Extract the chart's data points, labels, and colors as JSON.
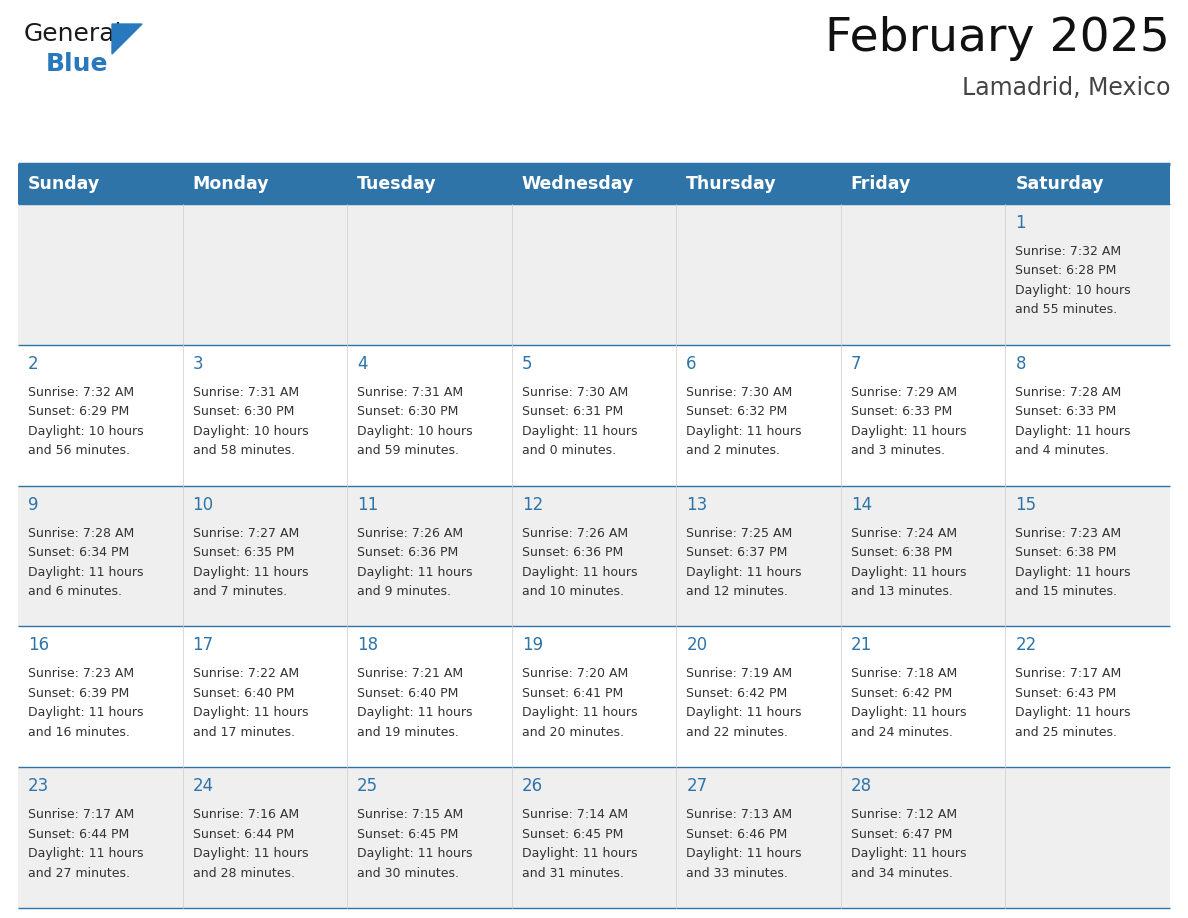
{
  "title": "February 2025",
  "subtitle": "Lamadrid, Mexico",
  "header_bg": "#2E74A8",
  "header_text": "#FFFFFF",
  "header_days": [
    "Sunday",
    "Monday",
    "Tuesday",
    "Wednesday",
    "Thursday",
    "Friday",
    "Saturday"
  ],
  "row_bg_odd": "#EFEFEF",
  "row_bg_even": "#FFFFFF",
  "cell_text_color": "#333333",
  "day_number_color": "#2E74A8",
  "logo_general_color": "#1a1a1a",
  "logo_blue_color": "#2878BE",
  "divider_color": "#2E74A8",
  "calendar_data": [
    [
      null,
      null,
      null,
      null,
      null,
      null,
      {
        "day": 1,
        "sunrise": "7:32 AM",
        "sunset": "6:28 PM",
        "daylight_line1": "Daylight: 10 hours",
        "daylight_line2": "and 55 minutes."
      }
    ],
    [
      {
        "day": 2,
        "sunrise": "7:32 AM",
        "sunset": "6:29 PM",
        "daylight_line1": "Daylight: 10 hours",
        "daylight_line2": "and 56 minutes."
      },
      {
        "day": 3,
        "sunrise": "7:31 AM",
        "sunset": "6:30 PM",
        "daylight_line1": "Daylight: 10 hours",
        "daylight_line2": "and 58 minutes."
      },
      {
        "day": 4,
        "sunrise": "7:31 AM",
        "sunset": "6:30 PM",
        "daylight_line1": "Daylight: 10 hours",
        "daylight_line2": "and 59 minutes."
      },
      {
        "day": 5,
        "sunrise": "7:30 AM",
        "sunset": "6:31 PM",
        "daylight_line1": "Daylight: 11 hours",
        "daylight_line2": "and 0 minutes."
      },
      {
        "day": 6,
        "sunrise": "7:30 AM",
        "sunset": "6:32 PM",
        "daylight_line1": "Daylight: 11 hours",
        "daylight_line2": "and 2 minutes."
      },
      {
        "day": 7,
        "sunrise": "7:29 AM",
        "sunset": "6:33 PM",
        "daylight_line1": "Daylight: 11 hours",
        "daylight_line2": "and 3 minutes."
      },
      {
        "day": 8,
        "sunrise": "7:28 AM",
        "sunset": "6:33 PM",
        "daylight_line1": "Daylight: 11 hours",
        "daylight_line2": "and 4 minutes."
      }
    ],
    [
      {
        "day": 9,
        "sunrise": "7:28 AM",
        "sunset": "6:34 PM",
        "daylight_line1": "Daylight: 11 hours",
        "daylight_line2": "and 6 minutes."
      },
      {
        "day": 10,
        "sunrise": "7:27 AM",
        "sunset": "6:35 PM",
        "daylight_line1": "Daylight: 11 hours",
        "daylight_line2": "and 7 minutes."
      },
      {
        "day": 11,
        "sunrise": "7:26 AM",
        "sunset": "6:36 PM",
        "daylight_line1": "Daylight: 11 hours",
        "daylight_line2": "and 9 minutes."
      },
      {
        "day": 12,
        "sunrise": "7:26 AM",
        "sunset": "6:36 PM",
        "daylight_line1": "Daylight: 11 hours",
        "daylight_line2": "and 10 minutes."
      },
      {
        "day": 13,
        "sunrise": "7:25 AM",
        "sunset": "6:37 PM",
        "daylight_line1": "Daylight: 11 hours",
        "daylight_line2": "and 12 minutes."
      },
      {
        "day": 14,
        "sunrise": "7:24 AM",
        "sunset": "6:38 PM",
        "daylight_line1": "Daylight: 11 hours",
        "daylight_line2": "and 13 minutes."
      },
      {
        "day": 15,
        "sunrise": "7:23 AM",
        "sunset": "6:38 PM",
        "daylight_line1": "Daylight: 11 hours",
        "daylight_line2": "and 15 minutes."
      }
    ],
    [
      {
        "day": 16,
        "sunrise": "7:23 AM",
        "sunset": "6:39 PM",
        "daylight_line1": "Daylight: 11 hours",
        "daylight_line2": "and 16 minutes."
      },
      {
        "day": 17,
        "sunrise": "7:22 AM",
        "sunset": "6:40 PM",
        "daylight_line1": "Daylight: 11 hours",
        "daylight_line2": "and 17 minutes."
      },
      {
        "day": 18,
        "sunrise": "7:21 AM",
        "sunset": "6:40 PM",
        "daylight_line1": "Daylight: 11 hours",
        "daylight_line2": "and 19 minutes."
      },
      {
        "day": 19,
        "sunrise": "7:20 AM",
        "sunset": "6:41 PM",
        "daylight_line1": "Daylight: 11 hours",
        "daylight_line2": "and 20 minutes."
      },
      {
        "day": 20,
        "sunrise": "7:19 AM",
        "sunset": "6:42 PM",
        "daylight_line1": "Daylight: 11 hours",
        "daylight_line2": "and 22 minutes."
      },
      {
        "day": 21,
        "sunrise": "7:18 AM",
        "sunset": "6:42 PM",
        "daylight_line1": "Daylight: 11 hours",
        "daylight_line2": "and 24 minutes."
      },
      {
        "day": 22,
        "sunrise": "7:17 AM",
        "sunset": "6:43 PM",
        "daylight_line1": "Daylight: 11 hours",
        "daylight_line2": "and 25 minutes."
      }
    ],
    [
      {
        "day": 23,
        "sunrise": "7:17 AM",
        "sunset": "6:44 PM",
        "daylight_line1": "Daylight: 11 hours",
        "daylight_line2": "and 27 minutes."
      },
      {
        "day": 24,
        "sunrise": "7:16 AM",
        "sunset": "6:44 PM",
        "daylight_line1": "Daylight: 11 hours",
        "daylight_line2": "and 28 minutes."
      },
      {
        "day": 25,
        "sunrise": "7:15 AM",
        "sunset": "6:45 PM",
        "daylight_line1": "Daylight: 11 hours",
        "daylight_line2": "and 30 minutes."
      },
      {
        "day": 26,
        "sunrise": "7:14 AM",
        "sunset": "6:45 PM",
        "daylight_line1": "Daylight: 11 hours",
        "daylight_line2": "and 31 minutes."
      },
      {
        "day": 27,
        "sunrise": "7:13 AM",
        "sunset": "6:46 PM",
        "daylight_line1": "Daylight: 11 hours",
        "daylight_line2": "and 33 minutes."
      },
      {
        "day": 28,
        "sunrise": "7:12 AM",
        "sunset": "6:47 PM",
        "daylight_line1": "Daylight: 11 hours",
        "daylight_line2": "and 34 minutes."
      },
      null
    ]
  ]
}
